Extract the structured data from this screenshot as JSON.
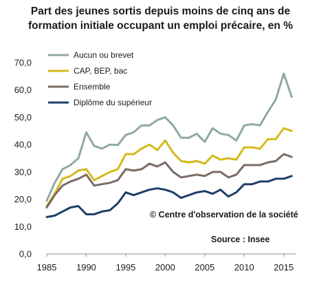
{
  "title_line1": "Part des jeunes sortis depuis moins de cinq ans de",
  "title_line2": "formation initiale occupant un emploi précaire, en %",
  "copyright": "© Centre d'observation de la société",
  "source": "Source : Insee",
  "chart_data": {
    "type": "line",
    "title": "Part des jeunes sortis depuis moins de cinq ans de formation initiale occupant un emploi précaire, en %",
    "xlabel": "",
    "ylabel": "",
    "x": [
      1985,
      1986,
      1987,
      1988,
      1989,
      1990,
      1991,
      1992,
      1993,
      1994,
      1995,
      1996,
      1997,
      1998,
      1999,
      2000,
      2001,
      2002,
      2003,
      2004,
      2005,
      2006,
      2007,
      2008,
      2009,
      2010,
      2011,
      2012,
      2013,
      2014,
      2015,
      2016
    ],
    "xticks": [
      1985,
      1990,
      1995,
      2000,
      2005,
      2010,
      2015
    ],
    "xtick_labels": [
      "1985",
      "1990",
      "1995",
      "2000",
      "2005",
      "2010",
      "2015"
    ],
    "yticks": [
      0,
      10,
      20,
      30,
      40,
      50,
      60,
      70
    ],
    "ytick_labels": [
      "0,0",
      "10,0",
      "20,0",
      "30,0",
      "40,0",
      "50,0",
      "60,0",
      "70,0"
    ],
    "ylim": [
      0,
      70
    ],
    "xlim": [
      1985,
      2016.5
    ],
    "grid": false,
    "legend_position": "top-left",
    "series": [
      {
        "name": "Aucun ou brevet",
        "color": "#8fa8a6",
        "values": [
          19.5,
          26.0,
          31.0,
          32.5,
          35.0,
          44.5,
          39.5,
          38.5,
          40.0,
          39.8,
          43.5,
          44.5,
          47.0,
          47.0,
          49.0,
          50.0,
          47.0,
          42.5,
          42.5,
          44.0,
          41.0,
          46.0,
          44.0,
          43.5,
          41.5,
          47.0,
          47.5,
          47.0,
          52.0,
          56.5,
          66.0,
          57.5
        ]
      },
      {
        "name": "CAP, BEP, bac",
        "color": "#d4b91a",
        "values": [
          17.5,
          22.0,
          27.5,
          28.5,
          30.5,
          31.0,
          27.0,
          28.5,
          30.0,
          31.0,
          36.5,
          36.5,
          38.5,
          40.0,
          38.0,
          41.5,
          37.0,
          34.0,
          33.5,
          34.0,
          33.0,
          36.0,
          34.5,
          35.0,
          34.5,
          39.0,
          39.0,
          38.5,
          42.0,
          42.0,
          46.0,
          45.0
        ]
      },
      {
        "name": "Ensemble",
        "color": "#7a6a64",
        "values": [
          17.0,
          21.5,
          25.0,
          26.5,
          27.5,
          29.0,
          25.0,
          25.5,
          26.0,
          27.0,
          31.0,
          30.5,
          31.0,
          33.0,
          32.0,
          33.5,
          30.0,
          28.0,
          28.5,
          29.0,
          28.5,
          30.0,
          30.0,
          28.0,
          29.0,
          32.5,
          32.5,
          32.5,
          33.5,
          34.0,
          36.5,
          35.5
        ]
      },
      {
        "name": "Diplôme du supérieur",
        "color": "#1f3e66",
        "values": [
          13.5,
          14.0,
          15.5,
          17.0,
          17.5,
          14.5,
          14.5,
          15.5,
          16.0,
          18.5,
          22.5,
          21.5,
          22.5,
          23.5,
          24.0,
          23.5,
          22.5,
          20.5,
          21.5,
          22.5,
          23.0,
          22.0,
          23.5,
          21.0,
          22.5,
          25.5,
          25.5,
          26.5,
          26.5,
          27.5,
          27.5,
          28.5
        ]
      }
    ]
  }
}
